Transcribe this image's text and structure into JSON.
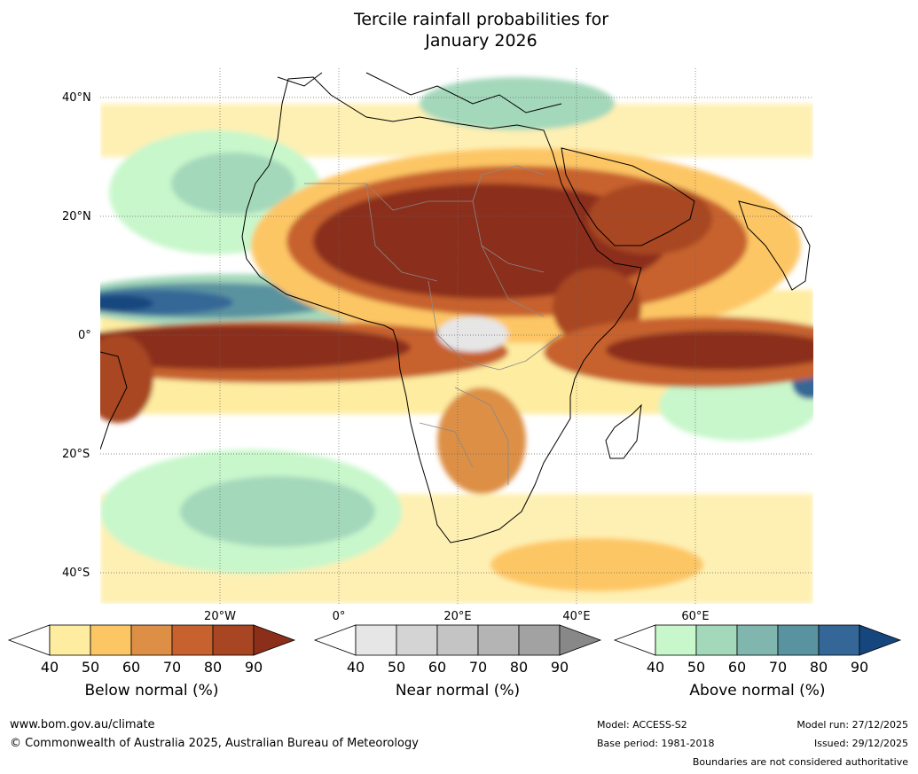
{
  "title": {
    "line1": "Tercile rainfall probabilities for",
    "line2": "January 2026"
  },
  "map": {
    "lat_labels": [
      "40°N",
      "20°N",
      "0°",
      "20°S",
      "40°S"
    ],
    "lon_labels": [
      "20°W",
      "0°",
      "20°E",
      "40°E",
      "60°E"
    ]
  },
  "colorbars": [
    {
      "name": "below",
      "label": "Below normal (%)",
      "ticks": [
        "40",
        "50",
        "60",
        "70",
        "80",
        "90"
      ],
      "colors": [
        "#ffffff",
        "#feeca0",
        "#fdc665",
        "#dd8f45",
        "#c7622f",
        "#a84624",
        "#8b2f1a"
      ]
    },
    {
      "name": "near",
      "label": "Near normal (%)",
      "ticks": [
        "40",
        "50",
        "60",
        "70",
        "80",
        "90"
      ],
      "colors": [
        "#ffffff",
        "#e6e6e6",
        "#d4d4d4",
        "#c4c4c4",
        "#b4b4b4",
        "#a2a2a2",
        "#888888"
      ]
    },
    {
      "name": "above",
      "label": "Above normal (%)",
      "ticks": [
        "40",
        "50",
        "60",
        "70",
        "80",
        "90"
      ],
      "colors": [
        "#ffffff",
        "#c8f7cb",
        "#a4d8bb",
        "#80b6ad",
        "#5a93a0",
        "#346797",
        "#15477e"
      ]
    }
  ],
  "footer": {
    "website": "www.bom.gov.au/climate",
    "copyright": "© Commonwealth of Australia 2025, Australian Bureau of Meteorology",
    "model": "Model: ACCESS-S2",
    "base_period": "Base period: 1981-2018",
    "model_run": "Model run: 27/12/2025",
    "issued": "Issued: 29/12/2025",
    "disclaimer": "Boundaries are not considered authoritative"
  }
}
